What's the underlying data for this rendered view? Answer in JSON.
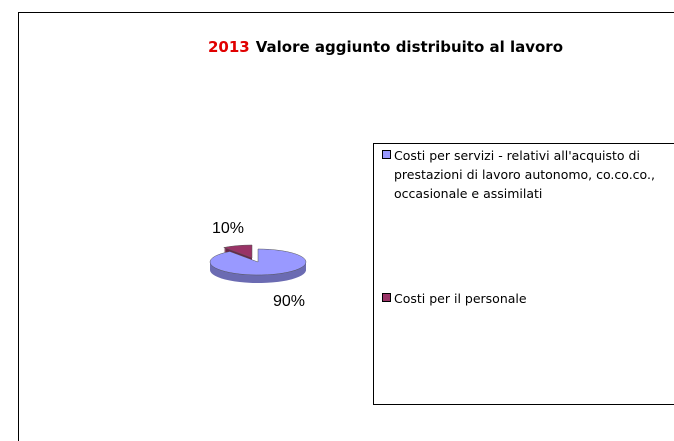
{
  "chart_data": {
    "type": "pie",
    "title_prefix": "2013",
    "title": "Valore aggiunto distribuito al lavoro",
    "categories": [
      "Costi per servizi - relativi all'acquisto di prestazioni di lavoro autonomo, co.co.co., occasionale e assimilati",
      "Costi per il personale"
    ],
    "values": [
      90,
      10
    ],
    "value_labels": [
      "90%",
      "10%"
    ],
    "colors": [
      "#9999ff",
      "#993366"
    ],
    "legend": "right"
  }
}
